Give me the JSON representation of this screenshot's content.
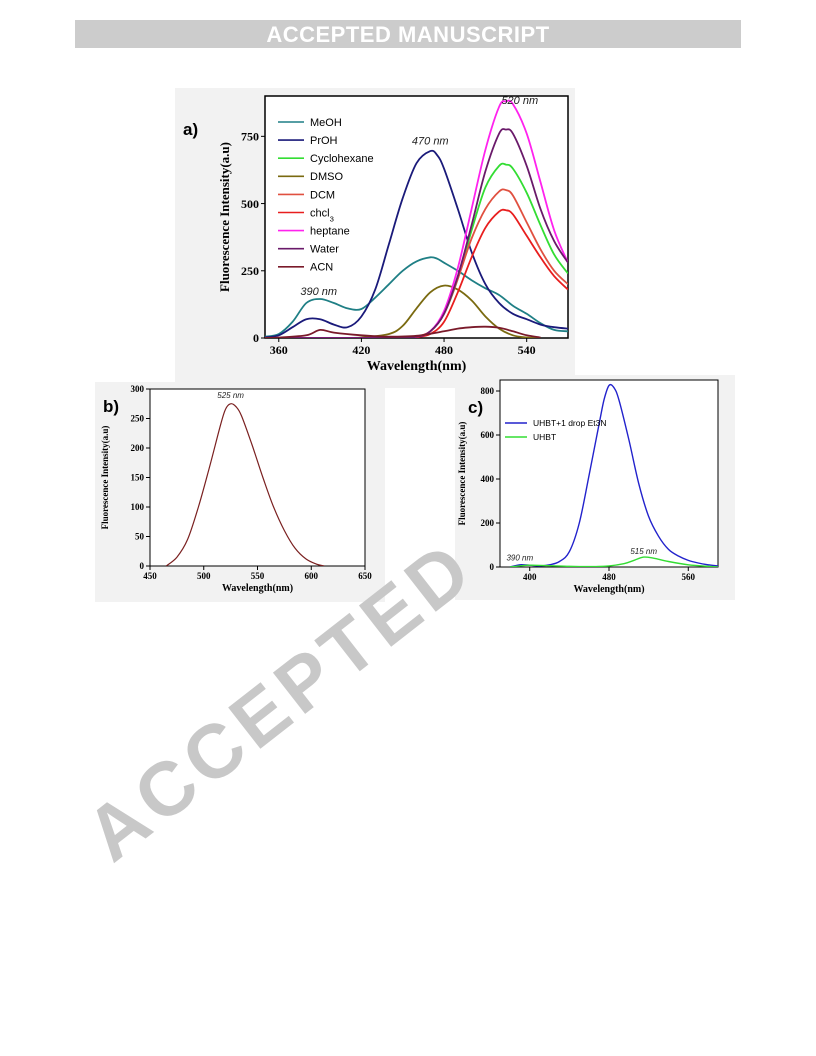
{
  "banner": {
    "text": "ACCEPTED MANUSCRIPT"
  },
  "watermark": {
    "text": "ACCEPTED"
  },
  "chart_data": [
    {
      "id": "a",
      "type": "line",
      "panel_label": "a)",
      "xlabel": "Wavelength(nm)",
      "ylabel": "Fluorescence Intensity(a.u)",
      "xlim": [
        350,
        570
      ],
      "ylim": [
        0,
        900
      ],
      "xticks": [
        360,
        420,
        480,
        540
      ],
      "yticks": [
        0,
        250,
        500,
        750
      ],
      "legend_position": "top-left",
      "annotations": [
        {
          "text": "390 nm",
          "x": 389,
          "y": 160
        },
        {
          "text": "470 nm",
          "x": 470,
          "y": 720
        },
        {
          "text": "520 nm",
          "x": 535,
          "y": 870
        }
      ],
      "series": [
        {
          "name": "MeOH",
          "color": "#1f7f85",
          "x": [
            350,
            360,
            370,
            380,
            390,
            400,
            410,
            420,
            430,
            440,
            450,
            460,
            470,
            475,
            480,
            490,
            500,
            510,
            520,
            530,
            540,
            550,
            560,
            570
          ],
          "y": [
            5,
            15,
            60,
            130,
            145,
            130,
            110,
            108,
            150,
            200,
            250,
            285,
            300,
            295,
            280,
            250,
            215,
            185,
            160,
            120,
            90,
            55,
            30,
            25
          ]
        },
        {
          "name": "PrOH",
          "color": "#1a1a7a",
          "x": [
            350,
            360,
            370,
            380,
            390,
            400,
            410,
            420,
            430,
            440,
            450,
            460,
            470,
            475,
            480,
            490,
            500,
            510,
            520,
            530,
            540,
            550,
            560,
            570
          ],
          "y": [
            2,
            10,
            40,
            70,
            70,
            50,
            40,
            80,
            180,
            350,
            520,
            650,
            695,
            680,
            630,
            480,
            320,
            200,
            130,
            90,
            70,
            50,
            40,
            35
          ]
        },
        {
          "name": "Cyclohexane",
          "color": "#33dd33",
          "x": [
            350,
            440,
            460,
            470,
            480,
            490,
            500,
            510,
            520,
            525,
            530,
            540,
            550,
            560,
            570
          ],
          "y": [
            0,
            0,
            5,
            25,
            90,
            220,
            400,
            560,
            640,
            645,
            630,
            540,
            420,
            310,
            240
          ]
        },
        {
          "name": "DMSO",
          "color": "#7a6a10",
          "x": [
            350,
            400,
            420,
            440,
            450,
            460,
            470,
            480,
            490,
            500,
            510,
            520,
            530,
            540,
            550
          ],
          "y": [
            0,
            0,
            2,
            15,
            45,
            110,
            170,
            195,
            180,
            140,
            80,
            35,
            10,
            2,
            0
          ]
        },
        {
          "name": "DCM",
          "color": "#e05040",
          "x": [
            350,
            450,
            460,
            470,
            480,
            490,
            500,
            510,
            520,
            525,
            530,
            540,
            550,
            560,
            570
          ],
          "y": [
            0,
            0,
            5,
            25,
            90,
            220,
            370,
            480,
            545,
            550,
            530,
            430,
            330,
            250,
            200
          ]
        },
        {
          "name": "chcl3",
          "color": "#e81e1e",
          "x": [
            350,
            450,
            460,
            470,
            480,
            490,
            500,
            510,
            520,
            525,
            530,
            540,
            550,
            560,
            570
          ],
          "y": [
            0,
            0,
            3,
            15,
            60,
            170,
            300,
            410,
            470,
            475,
            460,
            380,
            300,
            230,
            180
          ]
        },
        {
          "name": "heptane",
          "color": "#ff22ee",
          "x": [
            350,
            440,
            460,
            470,
            480,
            490,
            500,
            510,
            520,
            525,
            530,
            540,
            550,
            560,
            570
          ],
          "y": [
            0,
            0,
            5,
            25,
            100,
            260,
            480,
            700,
            860,
            880,
            870,
            760,
            580,
            400,
            280
          ]
        },
        {
          "name": "Water",
          "color": "#6a1a6a",
          "x": [
            350,
            440,
            460,
            470,
            480,
            490,
            500,
            510,
            520,
            525,
            530,
            540,
            550,
            560,
            570
          ],
          "y": [
            0,
            0,
            5,
            25,
            90,
            230,
            420,
            620,
            760,
            775,
            760,
            640,
            480,
            360,
            280
          ]
        },
        {
          "name": "ACN",
          "color": "#7a1a2a",
          "x": [
            350,
            360,
            380,
            390,
            400,
            420,
            440,
            460,
            480,
            490,
            500,
            510,
            520,
            530,
            540,
            550
          ],
          "y": [
            0,
            2,
            10,
            30,
            20,
            10,
            5,
            8,
            25,
            35,
            40,
            42,
            38,
            25,
            10,
            2
          ]
        }
      ]
    },
    {
      "id": "b",
      "type": "line",
      "panel_label": "b)",
      "xlabel": "Wavelength(nm)",
      "ylabel": "Fluorescence Intensity(a.u)",
      "xlim": [
        450,
        650
      ],
      "ylim": [
        0,
        300
      ],
      "xticks": [
        450,
        500,
        550,
        600,
        650
      ],
      "yticks": [
        0,
        50,
        100,
        150,
        200,
        250,
        300
      ],
      "annotations": [
        {
          "text": "525 nm",
          "x": 525,
          "y": 285
        }
      ],
      "series": [
        {
          "name": "",
          "color": "#7a2020",
          "x": [
            465,
            475,
            485,
            495,
            505,
            515,
            520,
            525,
            530,
            535,
            545,
            555,
            565,
            575,
            585,
            595,
            605,
            612
          ],
          "y": [
            0,
            15,
            45,
            100,
            165,
            235,
            265,
            275,
            270,
            255,
            205,
            150,
            100,
            60,
            30,
            12,
            3,
            0
          ]
        }
      ]
    },
    {
      "id": "c",
      "type": "line",
      "panel_label": "c)",
      "xlabel": "Wavelength(nm)",
      "ylabel": "Fluorescence Intensity(a.u)",
      "xlim": [
        370,
        590
      ],
      "ylim": [
        0,
        850
      ],
      "xticks": [
        400,
        480,
        560
      ],
      "yticks": [
        0,
        200,
        400,
        600,
        800
      ],
      "legend_position": "top-left",
      "annotations": [
        {
          "text": "390 nm",
          "x": 390,
          "y": 30
        },
        {
          "text": "515 nm",
          "x": 515,
          "y": 60
        }
      ],
      "series": [
        {
          "name": "UHBT+1 drop Et3N",
          "color": "#2222cc",
          "x": [
            380,
            390,
            400,
            410,
            420,
            430,
            440,
            450,
            460,
            470,
            475,
            480,
            485,
            490,
            500,
            510,
            520,
            530,
            540,
            550,
            560,
            570,
            580,
            590
          ],
          "y": [
            0,
            10,
            8,
            5,
            10,
            25,
            70,
            200,
            420,
            650,
            760,
            825,
            815,
            760,
            580,
            380,
            230,
            140,
            80,
            50,
            30,
            18,
            10,
            5
          ]
        },
        {
          "name": "UHBT",
          "color": "#33dd33",
          "x": [
            380,
            390,
            400,
            420,
            440,
            460,
            480,
            495,
            505,
            515,
            525,
            540,
            560,
            580,
            590
          ],
          "y": [
            0,
            5,
            8,
            6,
            3,
            2,
            5,
            15,
            30,
            45,
            40,
            25,
            10,
            3,
            0
          ]
        }
      ]
    }
  ]
}
